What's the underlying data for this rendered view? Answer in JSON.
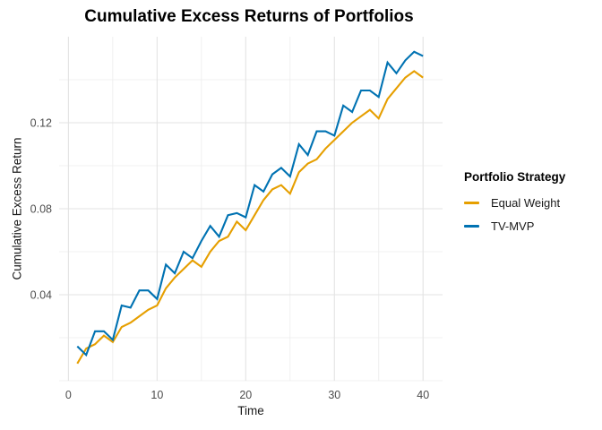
{
  "colors": {
    "equal_weight": "#E69F00",
    "tv_mvp": "#0072B2",
    "grid_major": "#E3E3E3",
    "grid_minor": "#ECECEC",
    "axis_text": "#4D4D4D",
    "background": "#FFFFFF"
  },
  "legend": {
    "title": "Portfolio Strategy",
    "items": [
      {
        "label": "Equal Weight",
        "color": "#E69F00"
      },
      {
        "label": "TV-MVP",
        "color": "#0072B2"
      }
    ]
  },
  "chart_data": {
    "type": "line",
    "title": "Cumulative Excess Returns of Portfolios",
    "xlabel": "Time",
    "ylabel": "Cumulative Excess Return",
    "x": [
      1,
      2,
      3,
      4,
      5,
      6,
      7,
      8,
      9,
      10,
      11,
      12,
      13,
      14,
      15,
      16,
      17,
      18,
      19,
      20,
      21,
      22,
      23,
      24,
      25,
      26,
      27,
      28,
      29,
      30,
      31,
      32,
      33,
      34,
      35,
      36,
      37,
      38,
      39,
      40
    ],
    "series": [
      {
        "name": "Equal Weight",
        "color": "#E69F00",
        "values": [
          0.008,
          0.015,
          0.017,
          0.021,
          0.018,
          0.025,
          0.027,
          0.03,
          0.033,
          0.035,
          0.043,
          0.048,
          0.052,
          0.056,
          0.053,
          0.06,
          0.065,
          0.067,
          0.074,
          0.07,
          0.077,
          0.084,
          0.089,
          0.091,
          0.087,
          0.097,
          0.101,
          0.103,
          0.108,
          0.112,
          0.116,
          0.12,
          0.123,
          0.126,
          0.122,
          0.131,
          0.136,
          0.141,
          0.144,
          0.141
        ]
      },
      {
        "name": "TV-MVP",
        "color": "#0072B2",
        "values": [
          0.016,
          0.012,
          0.023,
          0.023,
          0.019,
          0.035,
          0.034,
          0.042,
          0.042,
          0.038,
          0.054,
          0.05,
          0.06,
          0.057,
          0.065,
          0.072,
          0.067,
          0.077,
          0.078,
          0.076,
          0.091,
          0.088,
          0.096,
          0.099,
          0.095,
          0.11,
          0.105,
          0.116,
          0.116,
          0.114,
          0.128,
          0.125,
          0.135,
          0.135,
          0.132,
          0.148,
          0.143,
          0.149,
          0.153,
          0.151
        ]
      }
    ],
    "xlim": [
      -1.05,
      42.2
    ],
    "ylim": [
      0.0,
      0.16
    ],
    "x_major_ticks": [
      0,
      10,
      20,
      30,
      40
    ],
    "x_minor_ticks": [
      5,
      15,
      25,
      35
    ],
    "x_tick_labels": [
      "0",
      "10",
      "20",
      "30",
      "40"
    ],
    "y_major_ticks": [
      0.04,
      0.08,
      0.12
    ],
    "y_minor_ticks": [
      0.0,
      0.02,
      0.06,
      0.1,
      0.14
    ],
    "y_tick_labels": [
      "0.04",
      "0.08",
      "0.12"
    ],
    "grid": true,
    "legend_position": "right"
  }
}
